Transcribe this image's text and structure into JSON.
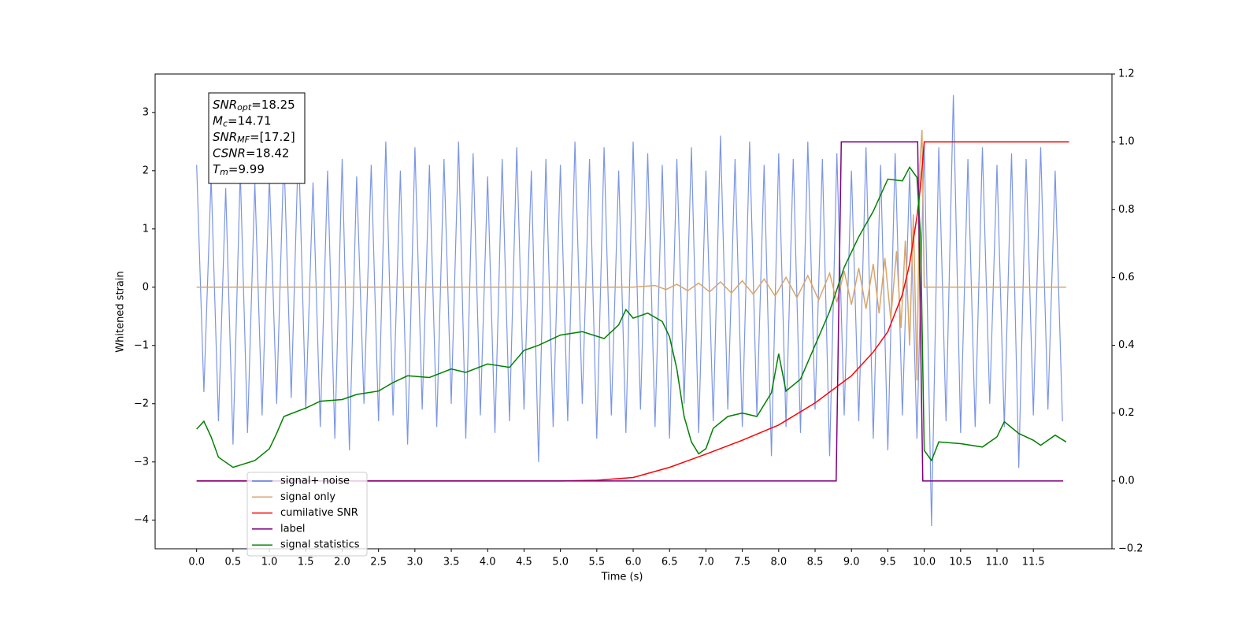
{
  "chart_data": {
    "type": "line",
    "xlabel": "Time (s)",
    "ylabel": "Whitened strain",
    "xlim": [
      -0.57,
      12.58
    ],
    "ylim": [
      -4.49,
      3.66
    ],
    "y2lim": [
      -0.2,
      1.2
    ],
    "xticks": [
      {
        "value": 0,
        "label": "0.0"
      },
      {
        "value": 0.5,
        "label": "0.5"
      },
      {
        "value": 1,
        "label": "1.0"
      },
      {
        "value": 1.5,
        "label": "1.5"
      },
      {
        "value": 2,
        "label": "2.0"
      },
      {
        "value": 2.5,
        "label": "2.5"
      },
      {
        "value": 3,
        "label": "3.0"
      },
      {
        "value": 3.5,
        "label": "3.5"
      },
      {
        "value": 4,
        "label": "4.0"
      },
      {
        "value": 4.5,
        "label": "4.5"
      },
      {
        "value": 5,
        "label": "5.0"
      },
      {
        "value": 5.5,
        "label": "5.5"
      },
      {
        "value": 6,
        "label": "6.0"
      },
      {
        "value": 6.5,
        "label": "6.5"
      },
      {
        "value": 7,
        "label": "7.0"
      },
      {
        "value": 7.5,
        "label": "7.5"
      },
      {
        "value": 8,
        "label": "8.0"
      },
      {
        "value": 8.5,
        "label": "8.5"
      },
      {
        "value": 9,
        "label": "9.0"
      },
      {
        "value": 9.5,
        "label": "9.5"
      },
      {
        "value": 10,
        "label": "10.0"
      },
      {
        "value": 10.5,
        "label": "10.5"
      },
      {
        "value": 11,
        "label": "11.0"
      },
      {
        "value": 11.5,
        "label": "11.5"
      }
    ],
    "yticks": [
      {
        "value": -4,
        "label": "−4"
      },
      {
        "value": -3,
        "label": "−3"
      },
      {
        "value": -2,
        "label": "−2"
      },
      {
        "value": -1,
        "label": "−1"
      },
      0,
      1,
      2,
      3
    ],
    "y2ticks": [
      {
        "value": -0.2,
        "label": "−0.2"
      },
      {
        "value": 0,
        "label": "0.0"
      },
      {
        "value": 0.2,
        "label": "0.2"
      },
      {
        "value": 0.4,
        "label": "0.4"
      },
      {
        "value": 0.6,
        "label": "0.6"
      },
      {
        "value": 0.8,
        "label": "0.8"
      },
      {
        "value": 1,
        "label": "1.0"
      },
      {
        "value": 1.2,
        "label": "1.2"
      }
    ],
    "grid": false,
    "legend": "lower left",
    "annotation": [
      {
        "symbol": "SNR",
        "subscript": "opt",
        "text": "=18.25"
      },
      {
        "symbol": "M",
        "subscript": "c",
        "text": "=14.71"
      },
      {
        "symbol": "SNR",
        "subscript": "MF",
        "text": "=[17.2]"
      },
      {
        "symbol": "CSNR",
        "subscript": null,
        "text": "=18.42"
      },
      {
        "symbol": "T",
        "subscript": "m",
        "text": "=9.99"
      }
    ],
    "series": [
      {
        "name": "signal+ noise",
        "color": "#5a7be0",
        "axis": "y",
        "x": [
          0,
          0.1,
          0.2,
          0.3,
          0.4,
          0.5,
          0.6,
          0.7,
          0.8,
          0.9,
          1,
          1.1,
          1.2,
          1.3,
          1.4,
          1.5,
          1.6,
          1.7,
          1.8,
          1.9,
          2,
          2.1,
          2.2,
          2.3,
          2.4,
          2.5,
          2.6,
          2.7,
          2.8,
          2.9,
          3,
          3.1,
          3.2,
          3.3,
          3.4,
          3.5,
          3.6,
          3.7,
          3.8,
          3.9,
          4,
          4.1,
          4.2,
          4.3,
          4.4,
          4.5,
          4.6,
          4.7,
          4.8,
          4.9,
          5,
          5.1,
          5.2,
          5.3,
          5.4,
          5.5,
          5.6,
          5.7,
          5.8,
          5.9,
          6,
          6.1,
          6.2,
          6.3,
          6.4,
          6.5,
          6.6,
          6.7,
          6.8,
          6.9,
          7,
          7.1,
          7.2,
          7.3,
          7.4,
          7.5,
          7.6,
          7.7,
          7.8,
          7.9,
          8,
          8.1,
          8.2,
          8.3,
          8.4,
          8.5,
          8.6,
          8.7,
          8.8,
          8.9,
          9,
          9.1,
          9.2,
          9.3,
          9.4,
          9.5,
          9.6,
          9.7,
          9.8,
          9.9,
          10,
          10.1,
          10.2,
          10.3,
          10.4,
          10.5,
          10.6,
          10.7,
          10.8,
          10.9,
          11,
          11.1,
          11.2,
          11.3,
          11.4,
          11.5,
          11.6,
          11.7,
          11.8,
          11.9
        ],
        "values": [
          2.1,
          -1.8,
          1.9,
          -2.3,
          1.7,
          -2.7,
          2.0,
          -2.5,
          1.8,
          -2.2,
          1.9,
          -2.0,
          2.3,
          -1.9,
          2.5,
          -2.1,
          1.8,
          -2.4,
          2.0,
          -2.6,
          2.2,
          -2.8,
          1.9,
          -2.0,
          2.1,
          -2.3,
          2.5,
          -2.2,
          2.0,
          -2.7,
          2.4,
          -2.1,
          2.1,
          -2.4,
          2.2,
          -2.0,
          2.5,
          -2.6,
          2.3,
          -2.2,
          1.9,
          -2.5,
          2.2,
          -2.3,
          2.4,
          -2.1,
          2.0,
          -3.0,
          2.2,
          -2.4,
          2.1,
          -2.3,
          2.5,
          -2.0,
          2.2,
          -2.6,
          2.4,
          -2.2,
          2.0,
          -2.5,
          2.5,
          -2.1,
          2.3,
          -2.4,
          2.1,
          -2.6,
          2.2,
          -2.0,
          2.4,
          -2.5,
          2.0,
          -2.3,
          2.6,
          -2.1,
          2.2,
          -2.4,
          2.5,
          -2.2,
          2.1,
          -2.9,
          2.3,
          -2.4,
          2.2,
          -2.5,
          2.5,
          -2.1,
          2.2,
          -2.9,
          2.3,
          -2.2,
          2.0,
          -2.3,
          2.4,
          -2.6,
          2.1,
          -2.8,
          2.3,
          -2.2,
          2.0,
          -2.6,
          2.5,
          -4.1,
          2.4,
          -2.3,
          3.3,
          -2.5,
          2.2,
          -2.4,
          2.4,
          -2.0,
          2.1,
          -2.4,
          2.3,
          -3.1,
          2.2,
          -2.2,
          2.4,
          -2.1,
          2.0,
          -2.3
        ]
      },
      {
        "name": "signal only",
        "color": "#d9a56a",
        "axis": "y",
        "x": [
          0,
          6.0,
          6.3,
          6.45,
          6.6,
          6.75,
          6.9,
          7.05,
          7.2,
          7.35,
          7.5,
          7.65,
          7.8,
          7.95,
          8.1,
          8.25,
          8.4,
          8.55,
          8.7,
          8.8,
          8.9,
          9.0,
          9.1,
          9.2,
          9.3,
          9.38,
          9.46,
          9.54,
          9.62,
          9.68,
          9.74,
          9.8,
          9.85,
          9.9,
          9.94,
          9.97,
          10.0,
          11.95
        ],
        "values": [
          0,
          0,
          0.03,
          -0.04,
          0.05,
          -0.06,
          0.07,
          -0.08,
          0.09,
          -0.1,
          0.11,
          -0.12,
          0.14,
          -0.15,
          0.17,
          -0.18,
          0.2,
          -0.22,
          0.24,
          -0.26,
          0.28,
          -0.3,
          0.33,
          -0.37,
          0.4,
          -0.45,
          0.5,
          -0.55,
          0.62,
          -0.7,
          0.8,
          -1.0,
          1.25,
          -1.6,
          2.1,
          2.7,
          0,
          0
        ]
      },
      {
        "name": "cumilative SNR",
        "color": "#ff0000",
        "axis": "y2",
        "x": [
          0,
          5.0,
          5.5,
          6.0,
          6.5,
          7.0,
          7.5,
          8.0,
          8.5,
          9.0,
          9.3,
          9.5,
          9.7,
          9.8,
          9.9,
          9.95,
          10.0,
          11.99
        ],
        "values": [
          0,
          0,
          0.002,
          0.01,
          0.04,
          0.079,
          0.12,
          0.165,
          0.23,
          0.31,
          0.38,
          0.44,
          0.55,
          0.64,
          0.78,
          0.87,
          1.0,
          1.0
        ]
      },
      {
        "name": "label",
        "color": "#800080",
        "axis": "y2",
        "x": [
          0,
          8.79,
          8.86,
          9.91,
          9.98,
          11.91
        ],
        "values": [
          0,
          0,
          1,
          1,
          0,
          0
        ]
      },
      {
        "name": "signal statistics",
        "color": "#008000",
        "axis": "y2",
        "x": [
          0,
          0.1,
          0.2,
          0.3,
          0.5,
          0.8,
          1.0,
          1.1,
          1.2,
          1.5,
          1.7,
          2.0,
          2.2,
          2.5,
          2.7,
          2.9,
          3.2,
          3.5,
          3.7,
          4.0,
          4.3,
          4.5,
          4.7,
          5.0,
          5.3,
          5.6,
          5.8,
          5.9,
          6.0,
          6.2,
          6.4,
          6.5,
          6.6,
          6.7,
          6.8,
          6.9,
          7.0,
          7.1,
          7.3,
          7.5,
          7.7,
          7.9,
          8.0,
          8.1,
          8.3,
          8.5,
          8.7,
          8.9,
          9.1,
          9.3,
          9.5,
          9.7,
          9.8,
          9.9,
          9.95,
          10.0,
          10.1,
          10.2,
          10.5,
          10.8,
          11.0,
          11.1,
          11.3,
          11.5,
          11.6,
          11.8,
          11.95
        ],
        "values": [
          0.153,
          0.176,
          0.13,
          0.07,
          0.04,
          0.06,
          0.095,
          0.14,
          0.19,
          0.215,
          0.235,
          0.24,
          0.255,
          0.265,
          0.29,
          0.31,
          0.305,
          0.33,
          0.32,
          0.345,
          0.335,
          0.385,
          0.4,
          0.43,
          0.44,
          0.42,
          0.46,
          0.505,
          0.48,
          0.495,
          0.47,
          0.425,
          0.33,
          0.19,
          0.115,
          0.08,
          0.095,
          0.155,
          0.19,
          0.2,
          0.19,
          0.26,
          0.375,
          0.265,
          0.3,
          0.4,
          0.5,
          0.63,
          0.72,
          0.795,
          0.89,
          0.885,
          0.925,
          0.895,
          0.72,
          0.09,
          0.06,
          0.115,
          0.11,
          0.1,
          0.13,
          0.175,
          0.14,
          0.12,
          0.105,
          0.135,
          0.115
        ]
      }
    ]
  }
}
